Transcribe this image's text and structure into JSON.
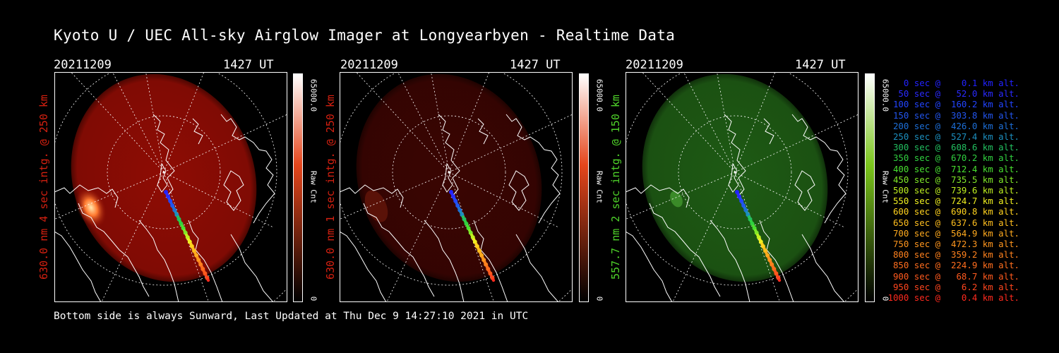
{
  "title": "Kyoto U / UEC All-sky Airglow Imager at Longyearbyen - Realtime Data",
  "footer": "Bottom side is always Sunward, Last Updated at Thu Dec  9 14:27:10 2021 in UTC",
  "panels": [
    {
      "date": "20211209",
      "time": "1427 UT",
      "ylabel": "630.0 nm 4 sec intg. @ 250 km",
      "label_color": "#d42010",
      "cbar_max": "65000.0",
      "cbar_min": "0",
      "cbar_label": "Raw Cnt",
      "cbar_color": "#e5461c",
      "glow_color": "#8e0c04",
      "glow_strength": 1.0,
      "bright_patch": true
    },
    {
      "date": "20211209",
      "time": "1427 UT",
      "ylabel": "630.0 nm 1 sec intg. @ 250 km",
      "label_color": "#d42010",
      "cbar_max": "65000.0",
      "cbar_min": "0",
      "cbar_label": "Raw Cnt",
      "cbar_color": "#e5461c",
      "glow_color": "#3a0502",
      "glow_strength": 1.0,
      "bright_patch": false
    },
    {
      "date": "20211209",
      "time": "1427 UT",
      "ylabel": "557.7 nm 2 sec intg. @ 150 km",
      "label_color": "#4fd32a",
      "cbar_max": "65000.0",
      "cbar_min": "0",
      "cbar_label": "Raw Cnt",
      "cbar_color": "#7bc51c",
      "glow_color": "#1e5a14",
      "glow_strength": 1.0,
      "bright_patch": false
    }
  ],
  "legend": [
    {
      "text": "   0 sec @    0.1 km alt.",
      "color": "#2222ff"
    },
    {
      "text": "  50 sec @   52.0 km alt.",
      "color": "#2a2aff"
    },
    {
      "text": " 100 sec @  160.2 km alt.",
      "color": "#2244ff"
    },
    {
      "text": " 150 sec @  303.8 km alt.",
      "color": "#2255ee"
    },
    {
      "text": " 200 sec @  426.0 km alt.",
      "color": "#1d6fd8"
    },
    {
      "text": " 250 sec @  527.4 km alt.",
      "color": "#1c8fbf"
    },
    {
      "text": " 300 sec @  608.6 km alt.",
      "color": "#22c060"
    },
    {
      "text": " 350 sec @  670.2 km alt.",
      "color": "#30d040"
    },
    {
      "text": " 400 sec @  712.4 km alt.",
      "color": "#48e030"
    },
    {
      "text": " 450 sec @  735.5 km alt.",
      "color": "#80e828"
    },
    {
      "text": " 500 sec @  739.6 km alt.",
      "color": "#bff020"
    },
    {
      "text": " 550 sec @  724.7 km alt.",
      "color": "#f0f020"
    },
    {
      "text": " 600 sec @  690.8 km alt.",
      "color": "#ffd21e"
    },
    {
      "text": " 650 sec @  637.6 km alt.",
      "color": "#ffbe1e"
    },
    {
      "text": " 700 sec @  564.9 km alt.",
      "color": "#ffaa1e"
    },
    {
      "text": " 750 sec @  472.3 km alt.",
      "color": "#ff961e"
    },
    {
      "text": " 800 sec @  359.2 km alt.",
      "color": "#ff821e"
    },
    {
      "text": " 850 sec @  224.9 km alt.",
      "color": "#ff6e1e"
    },
    {
      "text": " 900 sec @   68.7 km alt.",
      "color": "#ff5a1e"
    },
    {
      "text": " 950 sec @    6.2 km alt.",
      "color": "#ff461e"
    },
    {
      "text": "1000 sec @    0.4 km alt.",
      "color": "#ff2a1e"
    }
  ]
}
